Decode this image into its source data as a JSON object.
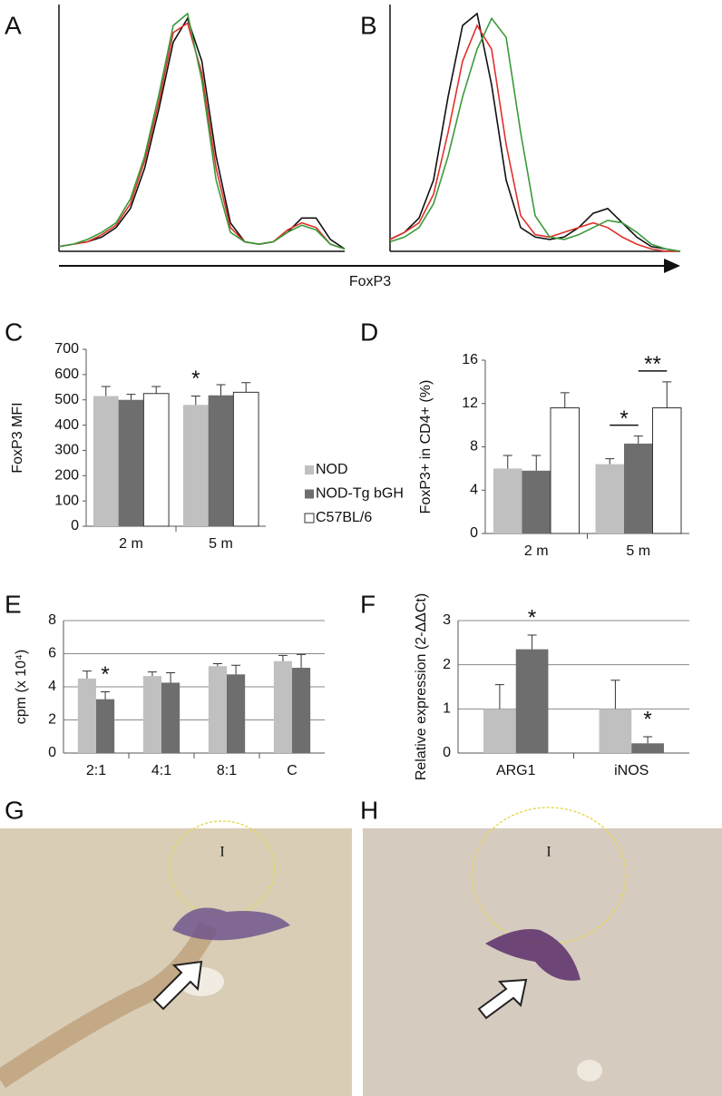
{
  "chart_data": [
    {
      "type": "line",
      "panel": "A",
      "xlabel": "FoxP3",
      "xlim": [
        0,
        100
      ],
      "ylim": [
        0,
        100
      ],
      "x": [
        0,
        5,
        10,
        15,
        20,
        25,
        30,
        35,
        40,
        45,
        50,
        55,
        60,
        65,
        70,
        75,
        80,
        85,
        90,
        95,
        100
      ],
      "series": [
        {
          "color": "#111111",
          "values": [
            2,
            3,
            4,
            6,
            10,
            18,
            35,
            60,
            88,
            98,
            80,
            40,
            12,
            4,
            3,
            4,
            8,
            14,
            14,
            5,
            1
          ]
        },
        {
          "color": "#e0302a",
          "values": [
            2,
            3,
            4,
            7,
            11,
            20,
            38,
            63,
            92,
            96,
            75,
            35,
            10,
            4,
            3,
            4,
            9,
            12,
            10,
            3,
            1
          ]
        },
        {
          "color": "#3a9a3a",
          "values": [
            2,
            3,
            5,
            8,
            12,
            22,
            40,
            66,
            95,
            100,
            72,
            30,
            8,
            4,
            3,
            4,
            8,
            11,
            9,
            3,
            1
          ]
        }
      ]
    },
    {
      "type": "line",
      "panel": "B",
      "xlim": [
        0,
        100
      ],
      "ylim": [
        0,
        100
      ],
      "x": [
        0,
        5,
        10,
        15,
        20,
        25,
        30,
        35,
        40,
        45,
        50,
        55,
        60,
        65,
        70,
        75,
        80,
        85,
        90,
        95,
        100
      ],
      "series": [
        {
          "color": "#111111",
          "values": [
            5,
            8,
            14,
            30,
            65,
            95,
            100,
            70,
            30,
            10,
            6,
            5,
            6,
            10,
            16,
            18,
            12,
            6,
            2,
            1,
            0
          ]
        },
        {
          "color": "#e0302a",
          "values": [
            5,
            8,
            12,
            24,
            50,
            80,
            95,
            85,
            45,
            15,
            7,
            6,
            8,
            10,
            12,
            10,
            6,
            3,
            1,
            0,
            0
          ]
        },
        {
          "color": "#3a9a3a",
          "values": [
            4,
            6,
            10,
            20,
            40,
            65,
            85,
            98,
            90,
            50,
            15,
            6,
            5,
            7,
            10,
            13,
            12,
            8,
            3,
            1,
            0
          ]
        }
      ]
    },
    {
      "type": "bar",
      "panel": "C",
      "ylabel": "FoxP3 MFI",
      "categories": [
        "2 m",
        "5 m"
      ],
      "ylim": [
        0,
        700
      ],
      "yticks": [
        0,
        100,
        200,
        300,
        400,
        500,
        600,
        700
      ],
      "grid": false,
      "series": [
        {
          "name": "NOD",
          "color": "#c0c0c0",
          "values": [
            515,
            480
          ],
          "errors": [
            38,
            35
          ]
        },
        {
          "name": "NOD-Tg bGH",
          "color": "#6e6e6e",
          "values": [
            500,
            518
          ],
          "errors": [
            22,
            42
          ]
        },
        {
          "name": "C57BL/6",
          "color": "#ffffff",
          "values": [
            525,
            530
          ],
          "errors": [
            28,
            38
          ]
        }
      ],
      "annotations": [
        {
          "text": "*",
          "category": 1,
          "series": [
            0
          ]
        }
      ]
    },
    {
      "type": "bar",
      "panel": "D",
      "ylabel": "FoxP3+ in CD4+ (%)",
      "categories": [
        "2 m",
        "5 m"
      ],
      "ylim": [
        0,
        16
      ],
      "yticks": [
        0,
        4,
        8,
        12,
        16
      ],
      "grid": false,
      "series": [
        {
          "color": "#c0c0c0",
          "values": [
            6,
            6.4
          ],
          "errors": [
            1.2,
            0.5
          ]
        },
        {
          "color": "#6e6e6e",
          "values": [
            5.8,
            8.3
          ],
          "errors": [
            1.4,
            0.7
          ]
        },
        {
          "color": "#ffffff",
          "values": [
            11.6,
            11.6
          ],
          "errors": [
            1.4,
            2.4
          ]
        }
      ],
      "annotations": [
        {
          "text": "*",
          "category": 1,
          "series": [
            0,
            1
          ]
        },
        {
          "text": "**",
          "category": 1,
          "series": [
            1,
            2
          ]
        }
      ]
    },
    {
      "type": "bar",
      "panel": "E",
      "ylabel": "cpm (x 10⁴)",
      "categories": [
        "2:1",
        "4:1",
        "8:1",
        "C"
      ],
      "ylim": [
        0,
        8
      ],
      "yticks": [
        0,
        2,
        4,
        6,
        8
      ],
      "grid": true,
      "series": [
        {
          "color": "#c0c0c0",
          "values": [
            4.5,
            4.65,
            5.25,
            5.55
          ],
          "errors": [
            0.45,
            0.25,
            0.15,
            0.35
          ]
        },
        {
          "color": "#6e6e6e",
          "values": [
            3.25,
            4.25,
            4.75,
            5.15
          ],
          "errors": [
            0.45,
            0.6,
            0.55,
            0.8
          ]
        }
      ],
      "annotations": [
        {
          "text": "*",
          "category": 0,
          "series": [
            1
          ]
        }
      ]
    },
    {
      "type": "bar",
      "panel": "F",
      "ylabel": "Relative expression (2-ΔΔCt)",
      "categories": [
        "ARG1",
        "iNOS"
      ],
      "ylim": [
        0,
        3
      ],
      "yticks": [
        0,
        1,
        2,
        3
      ],
      "grid": true,
      "series": [
        {
          "color": "#c0c0c0",
          "values": [
            1,
            1
          ],
          "errors": [
            0.55,
            0.65
          ]
        },
        {
          "color": "#6e6e6e",
          "values": [
            2.35,
            0.22
          ],
          "errors": [
            0.32,
            0.15
          ]
        }
      ],
      "annotations": [
        {
          "text": "*",
          "category": 0,
          "series": [
            1
          ]
        },
        {
          "text": "*",
          "category": 1,
          "series": [
            1
          ]
        }
      ]
    }
  ],
  "images": [
    {
      "panel": "G",
      "label": "I"
    },
    {
      "panel": "H",
      "label": "I"
    }
  ]
}
